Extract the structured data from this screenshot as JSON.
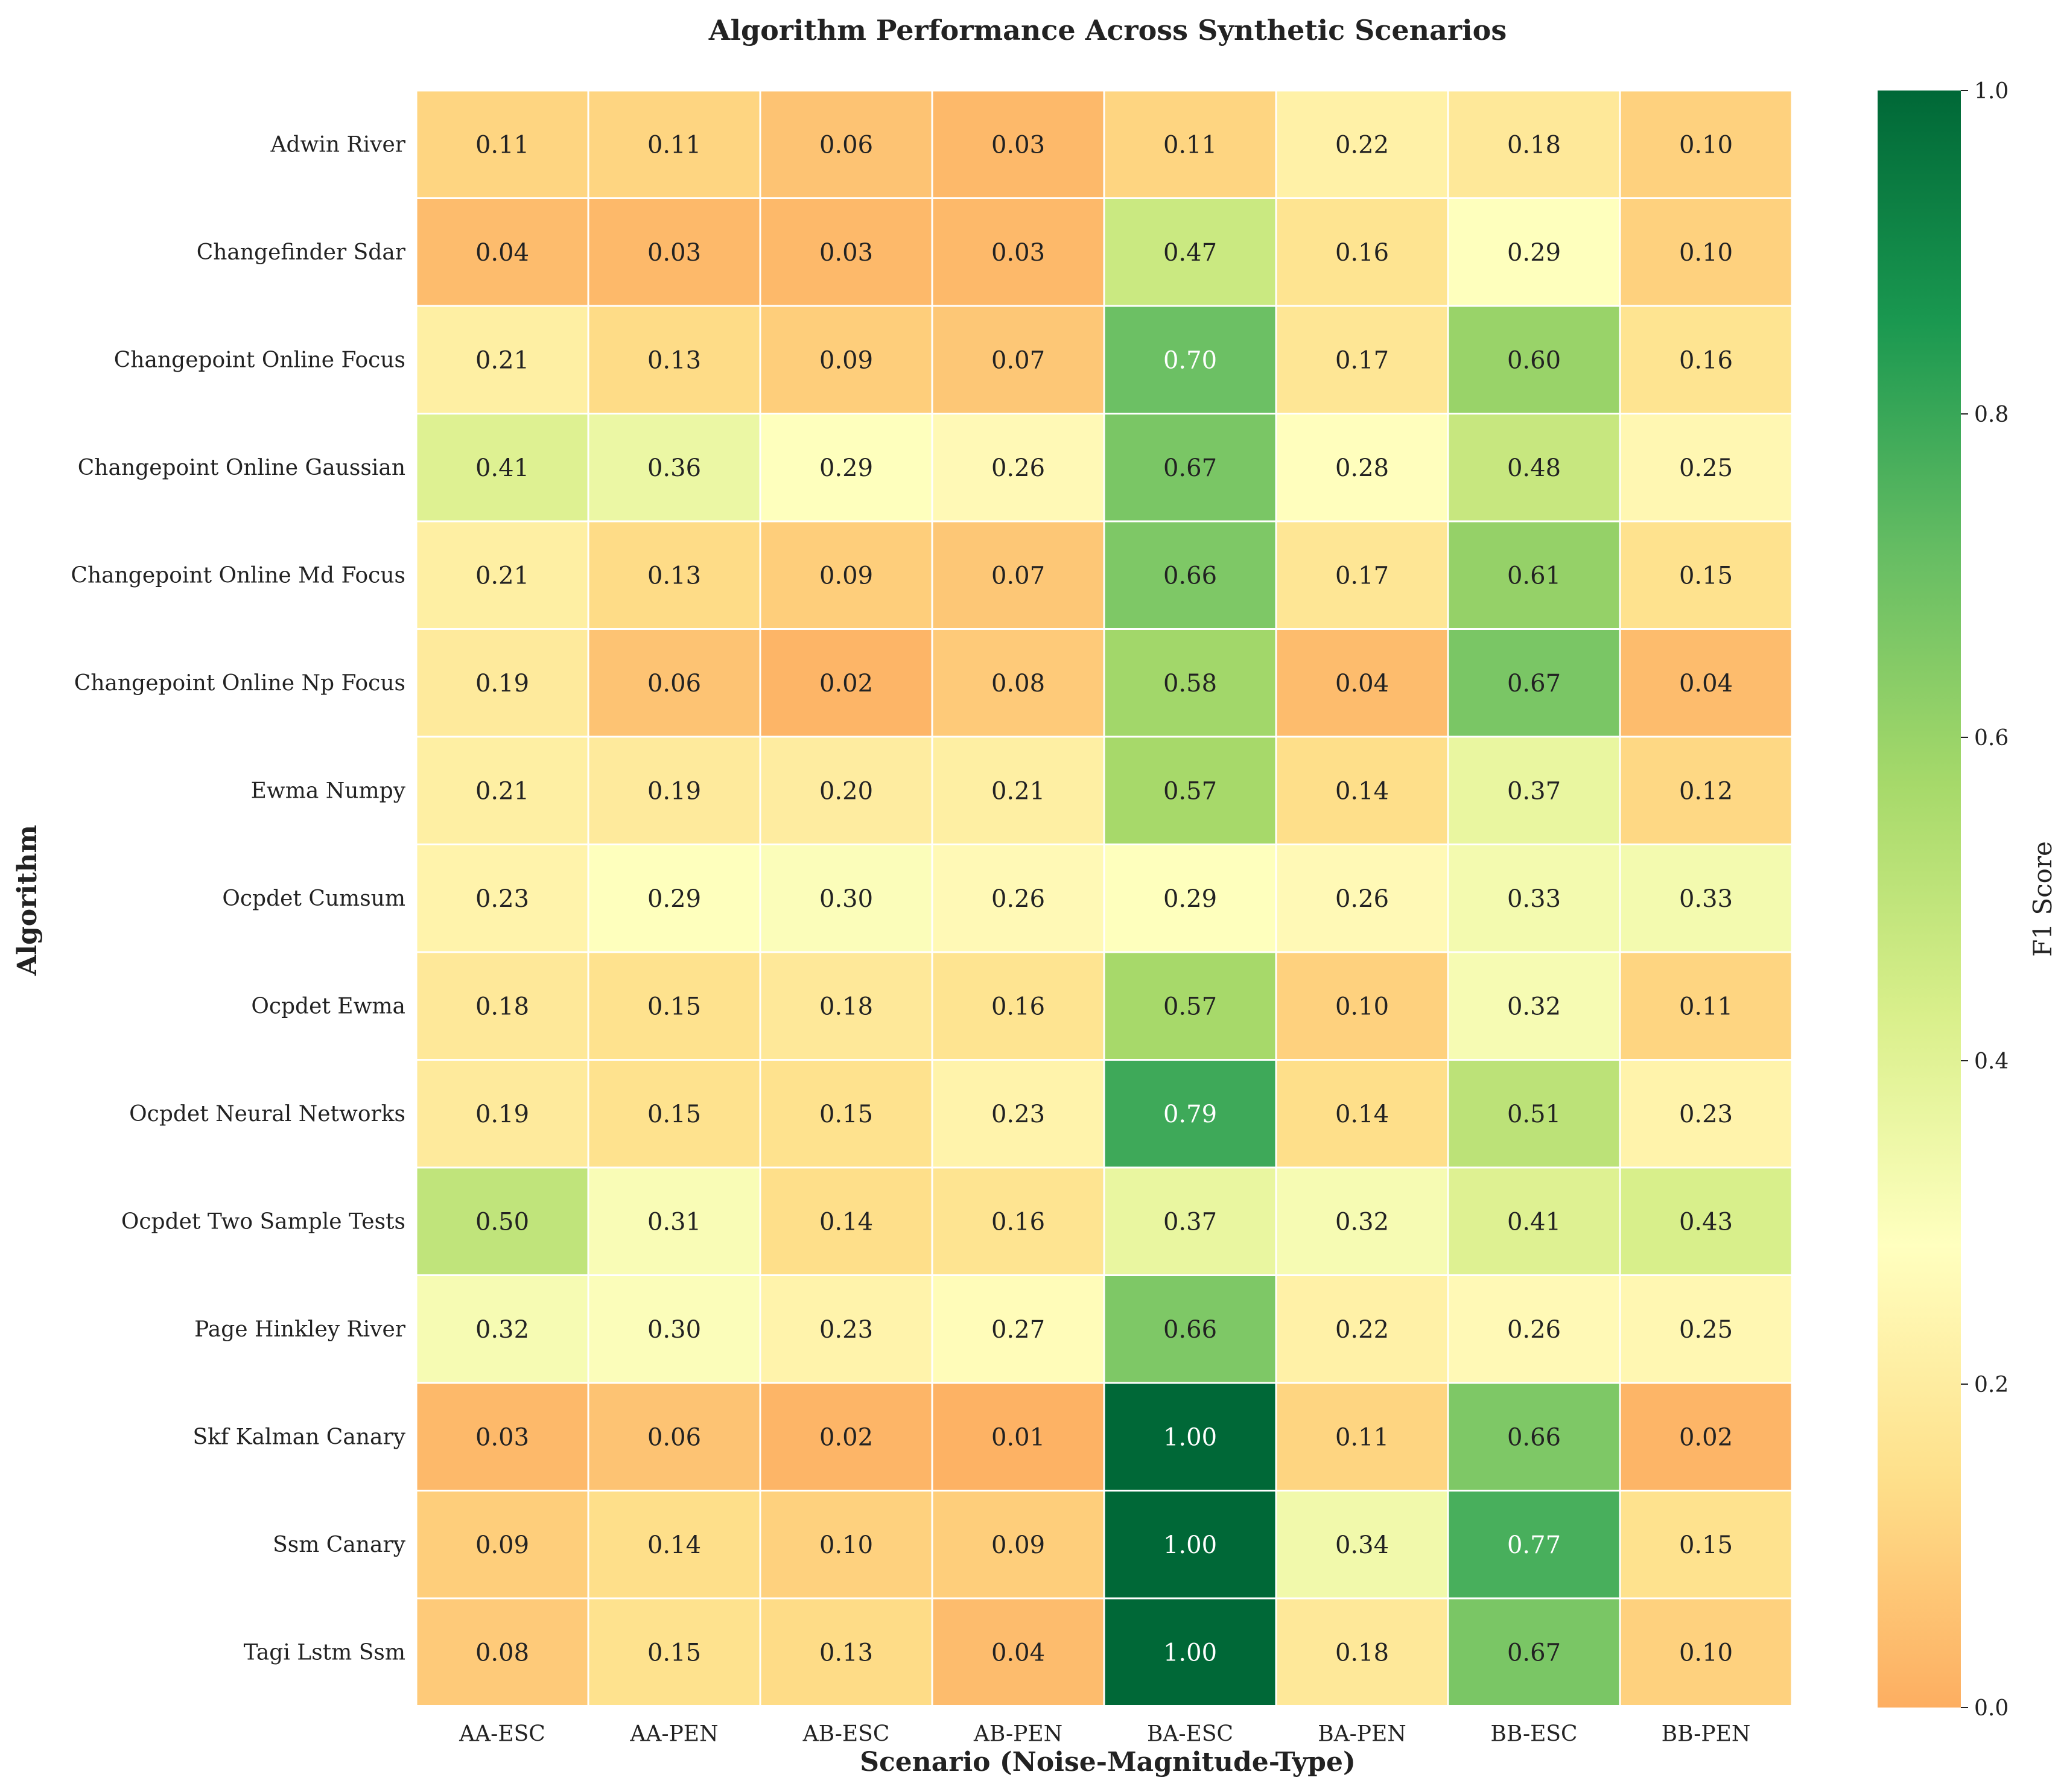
{
  "chart_data": {
    "type": "heatmap",
    "title": "Algorithm Performance Across Synthetic Scenarios",
    "xlabel": "Scenario (Noise-Magnitude-Type)",
    "ylabel": "Algorithm",
    "colorbar_label": "F1 Score",
    "colorbar_ticks": [
      "0.0",
      "0.2",
      "0.4",
      "0.6",
      "0.8",
      "1.0"
    ],
    "vmin": 0,
    "vmax": 1,
    "colormap": [
      "#fdae61",
      "#fee08b",
      "#ffffbf",
      "#d9ef8b",
      "#a6d96a",
      "#66bd63",
      "#1a9850",
      "#006837"
    ],
    "columns": [
      "AA-ESC",
      "AA-PEN",
      "AB-ESC",
      "AB-PEN",
      "BA-ESC",
      "BA-PEN",
      "BB-ESC",
      "BB-PEN"
    ],
    "rows": [
      "Adwin River",
      "Changefinder Sdar",
      "Changepoint Online Focus",
      "Changepoint Online Gaussian",
      "Changepoint Online Md Focus",
      "Changepoint Online Np Focus",
      "Ewma Numpy",
      "Ocpdet Cumsum",
      "Ocpdet Ewma",
      "Ocpdet Neural Networks",
      "Ocpdet Two Sample Tests",
      "Page Hinkley River",
      "Skf Kalman Canary",
      "Ssm Canary",
      "Tagi Lstm Ssm"
    ],
    "values": [
      [
        0.11,
        0.11,
        0.06,
        0.03,
        0.11,
        0.22,
        0.18,
        0.1
      ],
      [
        0.04,
        0.03,
        0.03,
        0.03,
        0.47,
        0.16,
        0.29,
        0.1
      ],
      [
        0.21,
        0.13,
        0.09,
        0.07,
        0.7,
        0.17,
        0.6,
        0.16
      ],
      [
        0.41,
        0.36,
        0.29,
        0.26,
        0.67,
        0.28,
        0.48,
        0.25
      ],
      [
        0.21,
        0.13,
        0.09,
        0.07,
        0.66,
        0.17,
        0.61,
        0.15
      ],
      [
        0.19,
        0.06,
        0.02,
        0.08,
        0.58,
        0.04,
        0.67,
        0.04
      ],
      [
        0.21,
        0.19,
        0.2,
        0.21,
        0.57,
        0.14,
        0.37,
        0.12
      ],
      [
        0.23,
        0.29,
        0.3,
        0.26,
        0.29,
        0.26,
        0.33,
        0.33
      ],
      [
        0.18,
        0.15,
        0.18,
        0.16,
        0.57,
        0.1,
        0.32,
        0.11
      ],
      [
        0.19,
        0.15,
        0.15,
        0.23,
        0.79,
        0.14,
        0.51,
        0.23
      ],
      [
        0.5,
        0.31,
        0.14,
        0.16,
        0.37,
        0.32,
        0.41,
        0.43
      ],
      [
        0.32,
        0.3,
        0.23,
        0.27,
        0.66,
        0.22,
        0.26,
        0.25
      ],
      [
        0.03,
        0.06,
        0.02,
        0.01,
        1.0,
        0.11,
        0.66,
        0.02
      ],
      [
        0.09,
        0.14,
        0.1,
        0.09,
        1.0,
        0.34,
        0.77,
        0.15
      ],
      [
        0.08,
        0.15,
        0.13,
        0.04,
        1.0,
        0.18,
        0.67,
        0.1
      ]
    ]
  }
}
